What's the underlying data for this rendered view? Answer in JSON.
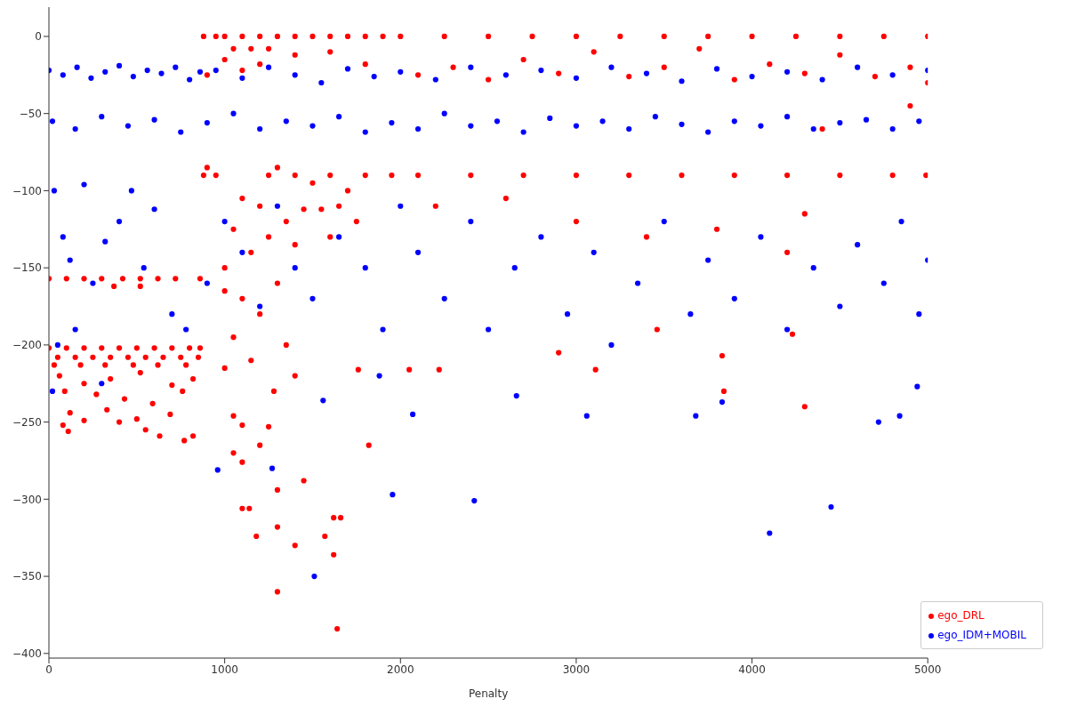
{
  "chart_data": {
    "type": "scatter",
    "xlabel": "Penalty",
    "xlim": [
      0,
      5000
    ],
    "xticks": [
      0,
      1000,
      2000,
      3000,
      4000,
      5000
    ],
    "ylim": [
      -403,
      19
    ],
    "yticks": [
      0,
      -50,
      -100,
      -150,
      -200,
      -250,
      -300,
      -350,
      -400
    ],
    "grid": false,
    "legend": "bottom right",
    "marker": "circle",
    "series": [
      {
        "name": "ego_DRL",
        "color": "#ff0000",
        "x": [
          0,
          100,
          200,
          300,
          400,
          500,
          600,
          700,
          800,
          860,
          50,
          150,
          250,
          350,
          450,
          550,
          650,
          750,
          850,
          30,
          180,
          320,
          480,
          620,
          780,
          60,
          200,
          350,
          520,
          700,
          820,
          90,
          270,
          430,
          590,
          760,
          120,
          330,
          500,
          690,
          80,
          110,
          200,
          400,
          550,
          630,
          770,
          820,
          0,
          100,
          200,
          300,
          420,
          520,
          620,
          720,
          860,
          370,
          520,
          880,
          950,
          1000,
          1100,
          1200,
          1300,
          1400,
          1500,
          1600,
          1700,
          1800,
          1900,
          1050,
          1150,
          1250,
          1000,
          1100,
          900,
          1200,
          1400,
          1600,
          1800,
          880,
          950,
          1250,
          1400,
          1600,
          1800,
          1950,
          900,
          1300,
          1500,
          1700,
          1100,
          1200,
          1450,
          1350,
          1550,
          1650,
          1750,
          1050,
          1250,
          1150,
          1400,
          1000,
          1600,
          1000,
          1100,
          1200,
          1300,
          1350,
          1050,
          1150,
          1000,
          1400,
          1280,
          1050,
          1100,
          1250,
          1200,
          1050,
          1100,
          1450,
          1300,
          1100,
          1140,
          1300,
          1180,
          1620,
          1660,
          1570,
          1400,
          1620,
          1300,
          1640,
          1820,
          1760,
          2050,
          2220,
          2000,
          2250,
          2500,
          2750,
          3000,
          3250,
          3500,
          3750,
          4000,
          4250,
          4500,
          4750,
          5000,
          2100,
          2400,
          2700,
          3000,
          3300,
          3600,
          3900,
          4200,
          4500,
          4800,
          4990,
          2100,
          2300,
          2500,
          2700,
          2900,
          3100,
          3300,
          3500,
          3700,
          3900,
          4100,
          4300,
          4500,
          4700,
          4900,
          5000,
          2200,
          2600,
          3000,
          3400,
          3800,
          4300,
          4200,
          2900,
          3460,
          3830,
          4300,
          4230,
          4900,
          3840,
          3110,
          4400
        ],
        "values": [
          -202,
          -202,
          -202,
          -202,
          -202,
          -202,
          -202,
          -202,
          -202,
          -202,
          -208,
          -208,
          -208,
          -208,
          -208,
          -208,
          -208,
          -208,
          -208,
          -213,
          -213,
          -213,
          -213,
          -213,
          -213,
          -220,
          -225,
          -222,
          -218,
          -226,
          -222,
          -230,
          -232,
          -235,
          -238,
          -230,
          -244,
          -242,
          -248,
          -245,
          -252,
          -256,
          -249,
          -250,
          -255,
          -259,
          -262,
          -259,
          -157,
          -157,
          -157,
          -157,
          -157,
          -157,
          -157,
          -157,
          -157,
          -162,
          -162,
          0,
          0,
          0,
          0,
          0,
          0,
          0,
          0,
          0,
          0,
          0,
          0,
          -8,
          -8,
          -8,
          -15,
          -22,
          -25,
          -18,
          -12,
          -10,
          -18,
          -90,
          -90,
          -90,
          -90,
          -90,
          -90,
          -90,
          -85,
          -85,
          -95,
          -100,
          -105,
          -110,
          -112,
          -120,
          -112,
          -110,
          -120,
          -125,
          -130,
          -140,
          -135,
          -150,
          -130,
          -165,
          -170,
          -180,
          -160,
          -200,
          -195,
          -210,
          -215,
          -220,
          -230,
          -246,
          -252,
          -253,
          -265,
          -270,
          -276,
          -288,
          -294,
          -306,
          -306,
          -318,
          -324,
          -312,
          -312,
          -324,
          -330,
          -336,
          -360,
          -384,
          -265,
          -216,
          -216,
          -216,
          0,
          0,
          0,
          0,
          0,
          0,
          0,
          0,
          0,
          0,
          0,
          0,
          0,
          -90,
          -90,
          -90,
          -90,
          -90,
          -90,
          -90,
          -90,
          -90,
          -90,
          -90,
          -25,
          -20,
          -28,
          -15,
          -24,
          -10,
          -26,
          -20,
          -8,
          -28,
          -18,
          -24,
          -12,
          -26,
          -20,
          -30,
          -110,
          -105,
          -120,
          -130,
          -125,
          -115,
          -140,
          -205,
          -190,
          -207,
          -240,
          -193,
          -45,
          -230,
          -216,
          -60
        ]
      },
      {
        "name": "ego_IDM+MOBIL",
        "color": "#0000ff",
        "x": [
          0,
          80,
          160,
          240,
          320,
          400,
          480,
          560,
          640,
          720,
          800,
          860,
          950,
          1100,
          1250,
          1400,
          1550,
          1700,
          1850,
          2000,
          2200,
          2400,
          2600,
          2800,
          3000,
          3200,
          3400,
          3600,
          3800,
          4000,
          4200,
          4400,
          4600,
          4800,
          5000,
          20,
          150,
          300,
          450,
          600,
          750,
          900,
          1050,
          1200,
          1350,
          1500,
          1650,
          1800,
          1950,
          2100,
          2250,
          2400,
          2550,
          2700,
          2850,
          3000,
          3150,
          3300,
          3450,
          3600,
          3750,
          3900,
          4050,
          4200,
          4350,
          4500,
          4650,
          4800,
          4950,
          30,
          80,
          120,
          200,
          250,
          320,
          400,
          470,
          540,
          600,
          700,
          780,
          50,
          150,
          20,
          300,
          900,
          1000,
          1100,
          1200,
          1300,
          1400,
          1500,
          1650,
          1800,
          1900,
          2000,
          2100,
          2250,
          2400,
          2500,
          2650,
          2800,
          2950,
          3100,
          3200,
          3350,
          3500,
          3650,
          3750,
          3900,
          4050,
          4200,
          4350,
          4500,
          4600,
          4750,
          4850,
          4950,
          5000,
          960,
          1270,
          1510,
          1955,
          2070,
          2420,
          1560,
          1880,
          2660,
          3060,
          3680,
          3830,
          4100,
          4450,
          4720,
          4840,
          4940
        ],
        "values": [
          -22,
          -25,
          -20,
          -27,
          -23,
          -19,
          -26,
          -22,
          -24,
          -20,
          -28,
          -23,
          -22,
          -27,
          -20,
          -25,
          -30,
          -21,
          -26,
          -23,
          -28,
          -20,
          -25,
          -22,
          -27,
          -20,
          -24,
          -29,
          -21,
          -26,
          -23,
          -28,
          -20,
          -25,
          -22,
          -55,
          -60,
          -52,
          -58,
          -54,
          -62,
          -56,
          -50,
          -60,
          -55,
          -58,
          -52,
          -62,
          -56,
          -60,
          -50,
          -58,
          -55,
          -62,
          -53,
          -58,
          -55,
          -60,
          -52,
          -57,
          -62,
          -55,
          -58,
          -52,
          -60,
          -56,
          -54,
          -60,
          -55,
          -100,
          -130,
          -145,
          -96,
          -160,
          -133,
          -120,
          -100,
          -150,
          -112,
          -180,
          -190,
          -200,
          -190,
          -230,
          -225,
          -160,
          -120,
          -140,
          -175,
          -110,
          -150,
          -170,
          -130,
          -150,
          -190,
          -110,
          -140,
          -170,
          -120,
          -190,
          -150,
          -130,
          -180,
          -140,
          -200,
          -160,
          -120,
          -180,
          -145,
          -170,
          -130,
          -190,
          -150,
          -175,
          -135,
          -160,
          -120,
          -180,
          -145,
          -281,
          -280,
          -350,
          -297,
          -245,
          -301,
          -236,
          -220,
          -233,
          -246,
          -246,
          -237,
          -322,
          -305,
          -250,
          -246,
          -227
        ]
      }
    ]
  }
}
